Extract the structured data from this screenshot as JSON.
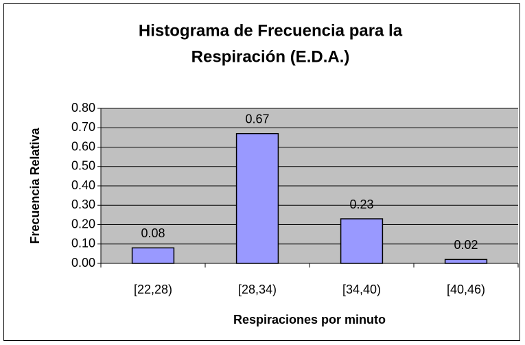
{
  "chart_data": {
    "type": "bar",
    "title": [
      "Histograma de Frecuencia para la",
      "Respiración (E.D.A.)"
    ],
    "x_label": "Respiraciones por minuto",
    "y_label": "Frecuencia Relativa",
    "categories": [
      "[22,28)",
      "[28,34)",
      "[34,40)",
      "[40,46)"
    ],
    "values": [
      0.08,
      0.67,
      0.23,
      0.02
    ],
    "color": "#9999ff",
    "ylim": [
      0,
      0.8
    ],
    "yticks": [
      {
        "value": 0,
        "label": "0.00"
      },
      {
        "value": 0.1,
        "label": "0.10"
      },
      {
        "value": 0.2,
        "label": "0.20"
      },
      {
        "value": 0.3,
        "label": "0.30"
      },
      {
        "value": 0.4,
        "label": "0.40"
      },
      {
        "value": 0.5,
        "label": "0.50"
      },
      {
        "value": 0.6,
        "label": "0.60"
      },
      {
        "value": 0.7,
        "label": "0.70"
      },
      {
        "value": 0.8,
        "label": "0.80"
      }
    ],
    "grid": true
  }
}
